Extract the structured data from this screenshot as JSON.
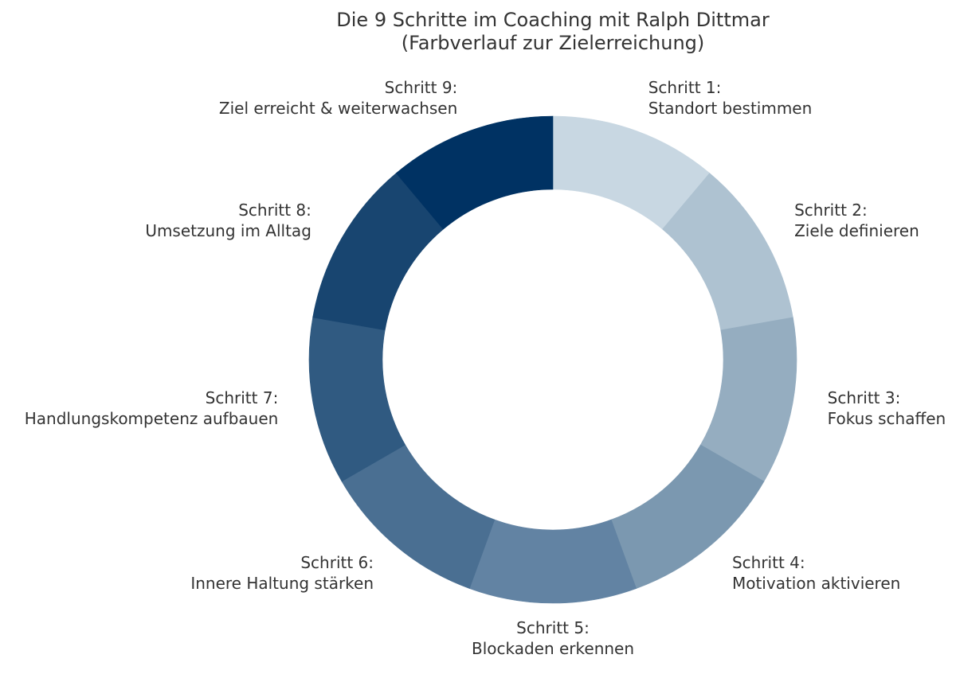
{
  "chart_data": {
    "type": "pie",
    "title": "Die 9 Schritte im Coaching mit Ralph Dittmar",
    "subtitle": "(Farbverlauf zur Zielerreichung)",
    "donut": true,
    "direction": "clockwise",
    "start": "top",
    "slices": [
      {
        "label_line1": "Schritt 1:",
        "label_line2": "Standort bestimmen",
        "value": 1,
        "color": "#c8d7e2"
      },
      {
        "label_line1": "Schritt 2:",
        "label_line2": "Ziele definieren",
        "value": 1,
        "color": "#aec2d1"
      },
      {
        "label_line1": "Schritt 3:",
        "label_line2": "Fokus schaffen",
        "value": 1,
        "color": "#95adc0"
      },
      {
        "label_line1": "Schritt 4:",
        "label_line2": "Motivation aktivieren",
        "value": 1,
        "color": "#7b98b0"
      },
      {
        "label_line1": "Schritt 5:",
        "label_line2": "Blockaden erkennen",
        "value": 1,
        "color": "#6283a3"
      },
      {
        "label_line1": "Schritt 6:",
        "label_line2": "Innere Haltung stärken",
        "value": 1,
        "color": "#4a6f92"
      },
      {
        "label_line1": "Schritt 7:",
        "label_line2": "Handlungskompetenz aufbauen",
        "value": 1,
        "color": "#305a81"
      },
      {
        "label_line1": "Schritt 8:",
        "label_line2": "Umsetzung im Alltag",
        "value": 1,
        "color": "#184570"
      },
      {
        "label_line1": "Schritt 9:",
        "label_line2": "Ziel erreicht & weiterwachsen",
        "value": 1,
        "color": "#003263"
      }
    ]
  }
}
